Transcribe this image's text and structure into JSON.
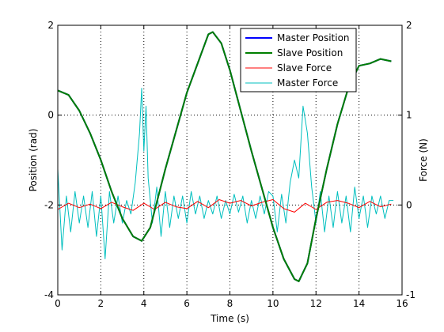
{
  "chart_data": {
    "type": "line",
    "xlabel": "Time (s)",
    "ylabel_left": "Position (rad)",
    "ylabel_right": "Force (N)",
    "xlim": [
      0,
      16
    ],
    "ylim_left": [
      -4,
      2
    ],
    "ylim_right": [
      -1,
      2
    ],
    "x_ticks": [
      "0",
      "2",
      "4",
      "6",
      "8",
      "10",
      "12",
      "14",
      "16"
    ],
    "y_left_ticks": [
      "-4",
      "-2",
      "0",
      "2"
    ],
    "y_right_ticks": [
      "-1",
      "0",
      "1",
      "2"
    ],
    "grid": true,
    "legend_position": "top-right",
    "legend": [
      "Master Position",
      "Slave Position",
      "Slave Force",
      "Master Force"
    ],
    "colors": {
      "master_position": "#0000ff",
      "slave_position": "#007f00",
      "slave_force": "#ff0000",
      "master_force": "#00bfbf"
    },
    "series": [
      {
        "name": "Master Position",
        "axis": "left",
        "x": [
          0,
          0.5,
          1,
          1.5,
          2,
          2.5,
          3,
          3.5,
          3.9,
          4.3,
          5,
          6,
          7,
          7.2,
          7.6,
          8,
          9,
          10,
          10.5,
          11,
          11.2,
          11.6,
          12,
          12.5,
          13,
          13.5,
          14,
          14.5,
          15,
          15.5
        ],
        "y": [
          0.55,
          0.45,
          0.1,
          -0.4,
          -1.0,
          -1.7,
          -2.3,
          -2.7,
          -2.8,
          -2.5,
          -1.2,
          0.5,
          1.8,
          1.85,
          1.6,
          1.0,
          -0.8,
          -2.5,
          -3.2,
          -3.65,
          -3.7,
          -3.3,
          -2.3,
          -1.2,
          -0.2,
          0.6,
          1.1,
          1.15,
          1.25,
          1.2
        ]
      },
      {
        "name": "Slave Position",
        "axis": "left",
        "x": [
          0,
          0.5,
          1,
          1.5,
          2,
          2.5,
          3,
          3.5,
          3.9,
          4.3,
          5,
          6,
          7,
          7.2,
          7.6,
          8,
          9,
          10,
          10.5,
          11,
          11.2,
          11.6,
          12,
          12.5,
          13,
          13.5,
          14,
          14.5,
          15,
          15.5
        ],
        "y": [
          0.55,
          0.45,
          0.1,
          -0.4,
          -1.0,
          -1.7,
          -2.3,
          -2.7,
          -2.8,
          -2.5,
          -1.2,
          0.5,
          1.8,
          1.85,
          1.6,
          1.0,
          -0.8,
          -2.5,
          -3.2,
          -3.65,
          -3.7,
          -3.3,
          -2.3,
          -1.2,
          -0.2,
          0.6,
          1.1,
          1.15,
          1.25,
          1.2
        ]
      },
      {
        "name": "Slave Force",
        "axis": "right",
        "x": [
          0,
          0.5,
          1,
          1.5,
          2,
          2.5,
          3,
          3.5,
          4,
          4.5,
          5,
          5.5,
          6,
          6.5,
          7,
          7.5,
          8,
          8.5,
          9,
          9.5,
          10,
          10.5,
          11,
          11.5,
          12,
          12.5,
          13,
          13.5,
          14,
          14.5,
          15,
          15.5
        ],
        "y": [
          -0.05,
          0.02,
          -0.03,
          0.01,
          -0.04,
          0.03,
          -0.02,
          -0.06,
          0.02,
          -0.05,
          0.03,
          -0.02,
          -0.04,
          0.04,
          -0.03,
          0.06,
          0.02,
          0.05,
          -0.01,
          0.03,
          0.06,
          -0.04,
          -0.08,
          0.02,
          -0.05,
          0.03,
          0.05,
          0.02,
          -0.03,
          0.04,
          -0.02,
          0.01
        ]
      },
      {
        "name": "Master Force",
        "axis": "right",
        "x": [
          0,
          0.2,
          0.4,
          0.6,
          0.8,
          1,
          1.2,
          1.4,
          1.6,
          1.8,
          2,
          2.2,
          2.4,
          2.6,
          2.8,
          3,
          3.2,
          3.4,
          3.6,
          3.8,
          3.9,
          4,
          4.1,
          4.2,
          4.4,
          4.6,
          4.8,
          5,
          5.2,
          5.4,
          5.6,
          5.8,
          6,
          6.2,
          6.4,
          6.6,
          6.8,
          7,
          7.2,
          7.4,
          7.6,
          7.8,
          8,
          8.2,
          8.4,
          8.6,
          8.8,
          9,
          9.2,
          9.4,
          9.6,
          9.8,
          10,
          10.2,
          10.4,
          10.6,
          10.8,
          11,
          11.2,
          11.4,
          11.6,
          11.8,
          12,
          12.2,
          12.4,
          12.6,
          12.8,
          13,
          13.2,
          13.4,
          13.6,
          13.8,
          14,
          14.2,
          14.4,
          14.6,
          14.8,
          15,
          15.2,
          15.4,
          15.6
        ],
        "y": [
          0.4,
          -0.5,
          0.1,
          -0.3,
          0.15,
          -0.2,
          0.1,
          -0.25,
          0.15,
          -0.35,
          0.1,
          -0.6,
          0.15,
          -0.2,
          0.1,
          -0.2,
          0.05,
          -0.1,
          0.25,
          0.8,
          1.3,
          0.6,
          1.1,
          0.3,
          -0.2,
          0.2,
          -0.35,
          0.15,
          -0.25,
          0.1,
          -0.15,
          0.1,
          -0.2,
          0.15,
          -0.1,
          0.1,
          -0.15,
          0.05,
          -0.1,
          0.1,
          -0.15,
          0.05,
          -0.1,
          0.12,
          -0.08,
          0.1,
          -0.2,
          0.05,
          -0.15,
          0.1,
          -0.1,
          0.15,
          0.1,
          -0.3,
          0.12,
          -0.2,
          0.25,
          0.5,
          0.3,
          1.1,
          0.8,
          0.2,
          -0.2,
          0.15,
          -0.3,
          0.1,
          -0.25,
          0.15,
          -0.2,
          0.1,
          -0.3,
          0.2,
          -0.15,
          0.1,
          -0.25,
          0.1,
          -0.1,
          0.1,
          -0.15,
          0.05,
          0.05
        ]
      }
    ]
  }
}
